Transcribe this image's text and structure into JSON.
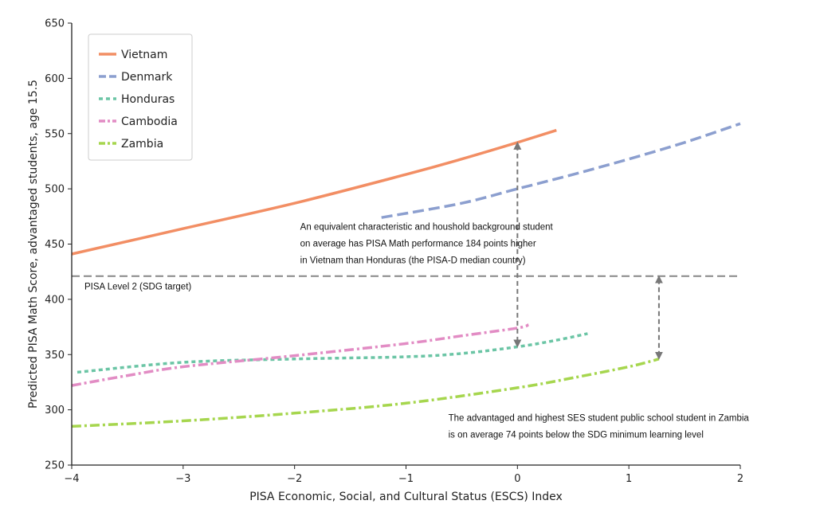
{
  "chart_data": {
    "type": "line",
    "title": "",
    "xlabel": "PISA Economic, Social, and Cultural Status (ESCS) Index",
    "ylabel": "Predicted PISA Math Score, advantaged students, age 15.5",
    "xlim": [
      -4,
      2
    ],
    "ylim": [
      250,
      650
    ],
    "xticks": [
      -4,
      -3,
      -2,
      -1,
      0,
      1,
      2
    ],
    "xtick_labels": [
      "−4",
      "−3",
      "−2",
      "−1",
      "0",
      "1",
      "2"
    ],
    "yticks": [
      250,
      300,
      350,
      400,
      450,
      500,
      550,
      600,
      650
    ],
    "ytick_labels": [
      "250",
      "300",
      "350",
      "400",
      "450",
      "500",
      "550",
      "600",
      "650"
    ],
    "grid": false,
    "legend_position": "top-left",
    "series": [
      {
        "name": "Vietnam",
        "color": "#f28e64",
        "dash": "solid",
        "x": [
          -4,
          -3,
          -2,
          -1,
          -0.5,
          0,
          0.35
        ],
        "y": [
          441,
          464,
          487,
          513,
          527,
          542,
          553
        ]
      },
      {
        "name": "Denmark",
        "color": "#8c9fcf",
        "dash": "dashed",
        "x": [
          -1.22,
          -0.5,
          0,
          0.5,
          1,
          1.5,
          2
        ],
        "y": [
          474,
          487,
          500,
          513,
          527,
          542,
          559
        ]
      },
      {
        "name": "Honduras",
        "color": "#6bc5a5",
        "dash": "dotted",
        "x": [
          -3.95,
          -3,
          -2,
          -1,
          -0.5,
          0,
          0.35,
          0.63
        ],
        "y": [
          334,
          343,
          346,
          348,
          351,
          357,
          363,
          369
        ]
      },
      {
        "name": "Cambodia",
        "color": "#e28cc4",
        "dash": "dashdot",
        "x": [
          -4,
          -3.5,
          -3,
          -2,
          -1,
          -0.5,
          0,
          0.1
        ],
        "y": [
          322,
          331,
          339,
          349,
          360,
          367,
          374,
          377
        ]
      },
      {
        "name": "Zambia",
        "color": "#a6d64e",
        "dash": "dashdot",
        "x": [
          -4,
          -3,
          -2,
          -1,
          0,
          0.5,
          1,
          1.27
        ],
        "y": [
          285,
          290,
          297,
          306,
          320,
          329,
          339,
          346
        ]
      }
    ],
    "reference_line": {
      "y": 421,
      "label": "PISA Level 2 (SDG target)",
      "color": "#888888"
    },
    "arrows": [
      {
        "x": 0,
        "y_from": 542,
        "y_to": 357
      },
      {
        "x": 1.27,
        "y_from": 421,
        "y_to": 346
      }
    ],
    "annotations": [
      {
        "x": -1.95,
        "y": 463,
        "lines": [
          "An equivalent characteristic and houshold background student",
          "on average has PISA Math performance 184 points higher",
          "in Vietnam than Honduras (the PISA-D median country)"
        ]
      },
      {
        "x": -0.62,
        "y": 290,
        "lines": [
          "The advantaged and highest SES student public school student in Zambia",
          "is on average 74 points below the SDG minimum learning level"
        ]
      }
    ]
  }
}
